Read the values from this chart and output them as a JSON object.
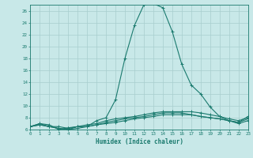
{
  "xlabel": "Humidex (Indice chaleur)",
  "x_values": [
    0,
    1,
    2,
    3,
    4,
    5,
    6,
    7,
    8,
    9,
    10,
    11,
    12,
    13,
    14,
    15,
    16,
    17,
    18,
    19,
    20,
    21,
    22,
    23
  ],
  "series": [
    [
      6.5,
      7.0,
      6.5,
      6.5,
      6.2,
      6.5,
      6.5,
      7.5,
      8.0,
      11.0,
      18.0,
      23.5,
      27.0,
      27.2,
      26.5,
      22.5,
      17.0,
      13.5,
      12.0,
      9.8,
      8.2,
      7.5,
      7.2,
      8.2
    ],
    [
      6.5,
      7.0,
      6.8,
      6.0,
      6.3,
      6.5,
      6.8,
      7.0,
      7.5,
      7.8,
      8.0,
      8.2,
      8.5,
      8.8,
      9.0,
      9.0,
      9.0,
      9.0,
      8.8,
      8.5,
      8.2,
      7.8,
      7.5,
      8.0
    ],
    [
      6.5,
      6.8,
      6.5,
      6.2,
      6.0,
      6.2,
      6.5,
      6.8,
      7.0,
      7.2,
      7.5,
      7.8,
      8.0,
      8.2,
      8.5,
      8.5,
      8.5,
      8.5,
      8.2,
      8.0,
      7.8,
      7.5,
      7.2,
      7.8
    ],
    [
      6.5,
      6.8,
      6.5,
      6.2,
      6.0,
      6.5,
      6.5,
      6.8,
      7.2,
      7.5,
      7.8,
      8.0,
      8.2,
      8.5,
      8.8,
      8.8,
      8.8,
      8.5,
      8.2,
      8.0,
      7.8,
      7.5,
      7.0,
      7.5
    ]
  ],
  "line_color": "#1a7a6e",
  "bg_color": "#c8e8e8",
  "grid_color": "#a8cece",
  "ylim": [
    6,
    27
  ],
  "yticks": [
    6,
    8,
    10,
    12,
    14,
    16,
    18,
    20,
    22,
    24,
    26
  ],
  "xlim": [
    0,
    23
  ]
}
